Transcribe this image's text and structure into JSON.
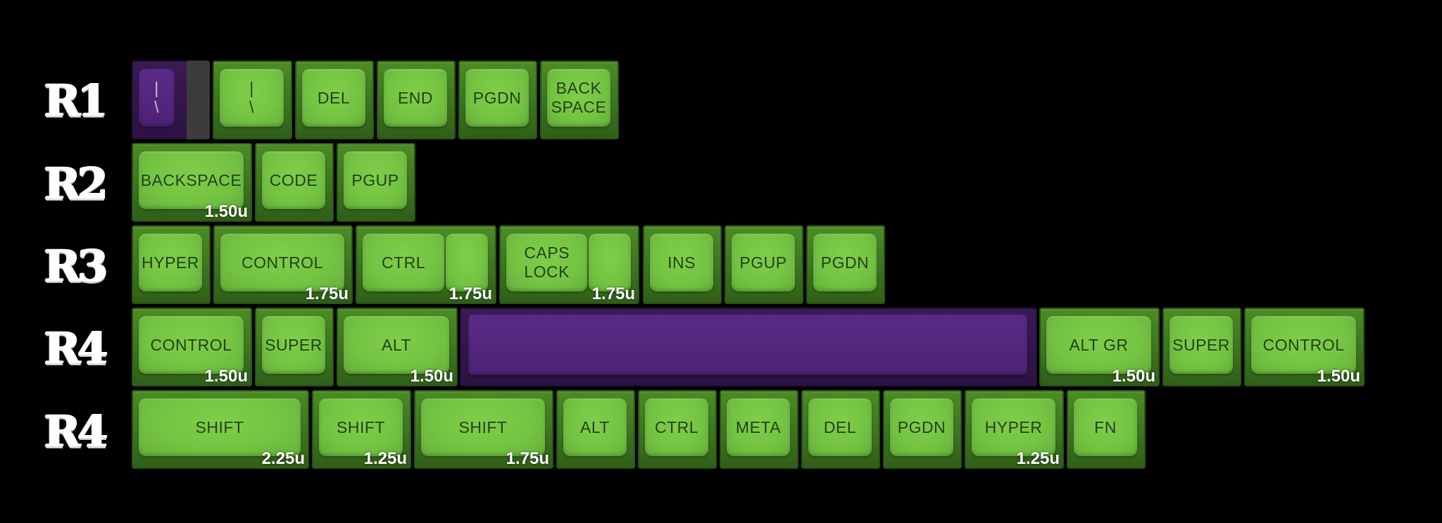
{
  "rows": [
    {
      "label": "R1",
      "keys": [
        {
          "legend": "|\n\\",
          "size": "",
          "color": "purple-split"
        },
        {
          "legend": "|\n\\",
          "size": ""
        },
        {
          "legend": "DEL",
          "size": ""
        },
        {
          "legend": "END",
          "size": ""
        },
        {
          "legend": "PGDN",
          "size": ""
        },
        {
          "legend": "BACK\nSPACE",
          "size": ""
        }
      ]
    },
    {
      "label": "R2",
      "keys": [
        {
          "legend": "BACKSPACE",
          "size": "1.50u"
        },
        {
          "legend": "CODE",
          "size": ""
        },
        {
          "legend": "PGUP",
          "size": ""
        }
      ]
    },
    {
      "label": "R3",
      "keys": [
        {
          "legend": "HYPER",
          "size": ""
        },
        {
          "legend": "CONTROL",
          "size": "1.75u"
        },
        {
          "legend": "CTRL",
          "size": "1.75u"
        },
        {
          "legend": "CAPS\nLOCK",
          "size": "1.75u"
        },
        {
          "legend": "INS",
          "size": ""
        },
        {
          "legend": "PGUP",
          "size": ""
        },
        {
          "legend": "PGDN",
          "size": ""
        }
      ]
    },
    {
      "label": "R4",
      "keys": [
        {
          "legend": "CONTROL",
          "size": "1.50u"
        },
        {
          "legend": "SUPER",
          "size": ""
        },
        {
          "legend": "ALT",
          "size": "1.50u"
        },
        {
          "legend": "",
          "size": "",
          "color": "purple"
        },
        {
          "legend": "ALT GR",
          "size": "1.50u"
        },
        {
          "legend": "SUPER",
          "size": ""
        },
        {
          "legend": "CONTROL",
          "size": "1.50u"
        }
      ]
    },
    {
      "label": "R4",
      "keys": [
        {
          "legend": "SHIFT",
          "size": "2.25u"
        },
        {
          "legend": "SHIFT",
          "size": "1.25u"
        },
        {
          "legend": "SHIFT",
          "size": "1.75u"
        },
        {
          "legend": "ALT",
          "size": ""
        },
        {
          "legend": "CTRL",
          "size": ""
        },
        {
          "legend": "META",
          "size": ""
        },
        {
          "legend": "DEL",
          "size": ""
        },
        {
          "legend": "PGDN",
          "size": ""
        },
        {
          "legend": "HYPER",
          "size": "1.25u"
        },
        {
          "legend": "FN",
          "size": ""
        }
      ]
    }
  ]
}
